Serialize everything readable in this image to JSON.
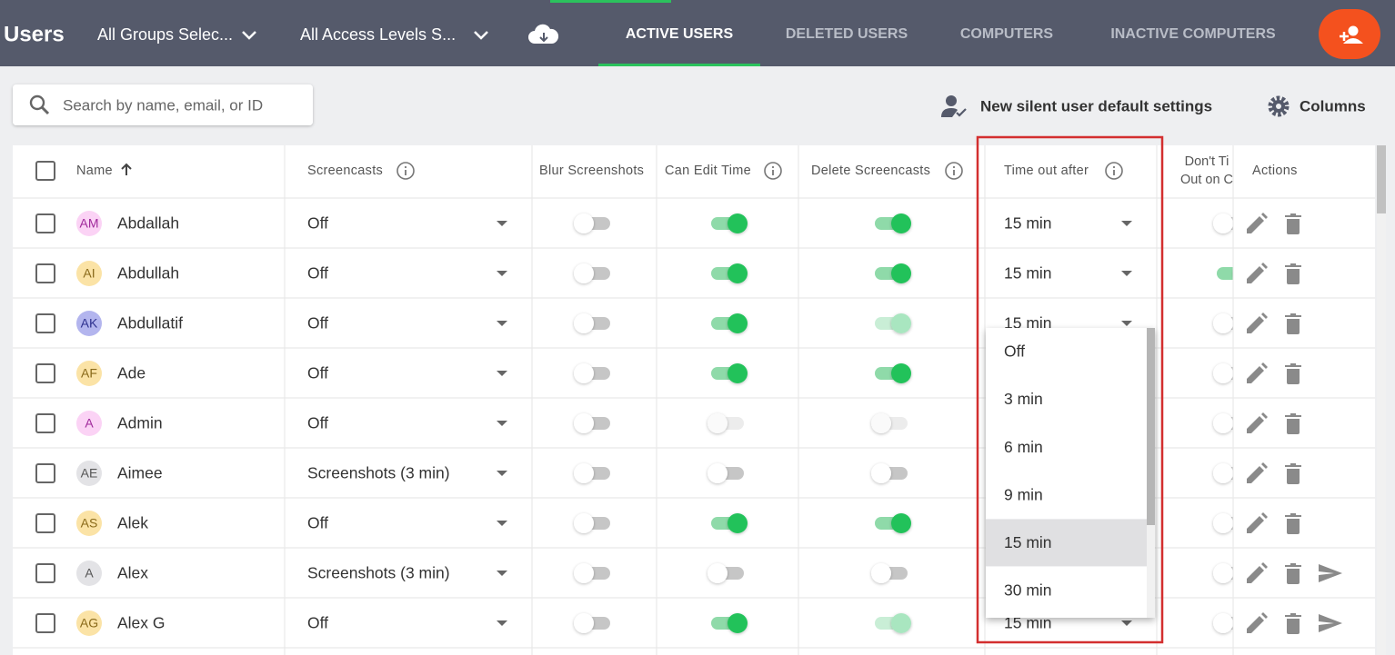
{
  "header": {
    "title": "Users",
    "groups_filter": "All Groups Selec...",
    "access_filter": "All Access Levels S...",
    "tabs": [
      "ACTIVE USERS",
      "DELETED USERS",
      "COMPUTERS",
      "INACTIVE COMPUTERS"
    ],
    "active_tab": 0
  },
  "toolbar": {
    "search_placeholder": "Search by name, email, or ID",
    "silent_settings": "New silent user default settings",
    "columns": "Columns"
  },
  "table": {
    "columns": [
      "Name",
      "Screencasts",
      "Blur Screenshots",
      "Can Edit Time",
      "Delete Screencasts",
      "Time out after",
      "Actions"
    ],
    "dont_header": [
      "Don't Ti",
      "Out on C"
    ],
    "rows": [
      {
        "initials": "AM",
        "name": "Abdallah",
        "avatar_color": "#fbd3f5",
        "initials_color": "#a0299b",
        "screencasts": "Off",
        "blur": "off",
        "edit": "on",
        "delete": "on",
        "timeout": "15 min",
        "dont": "off"
      },
      {
        "initials": "AI",
        "name": "Abdullah",
        "avatar_color": "#fbe3a6",
        "initials_color": "#8a6a1a",
        "screencasts": "Off",
        "blur": "off",
        "edit": "on",
        "delete": "on",
        "timeout": "15 min",
        "dont": "on"
      },
      {
        "initials": "AK",
        "name": "Abdullatif",
        "avatar_color": "#b3b5ee",
        "initials_color": "#2e318f",
        "screencasts": "Off",
        "blur": "off",
        "edit": "on",
        "delete": "on-disabled",
        "timeout": "15 min",
        "dont": "off"
      },
      {
        "initials": "AF",
        "name": "Ade",
        "avatar_color": "#fbe3a6",
        "initials_color": "#8a6a1a",
        "screencasts": "Off",
        "blur": "off",
        "edit": "on",
        "delete": "on",
        "dont": "off"
      },
      {
        "initials": "A",
        "name": "Admin",
        "avatar_color": "#fbd3f5",
        "initials_color": "#a0299b",
        "screencasts": "Off",
        "blur": "off",
        "edit": "off-disabled",
        "delete": "off-disabled",
        "dont": "off"
      },
      {
        "initials": "AE",
        "name": "Aimee",
        "avatar_color": "#e3e3e6",
        "initials_color": "#555",
        "screencasts": "Screenshots (3 min)",
        "blur": "off",
        "edit": "off",
        "delete": "off",
        "dont": "off"
      },
      {
        "initials": "AS",
        "name": "Alek",
        "avatar_color": "#fbe3a6",
        "initials_color": "#8a6a1a",
        "screencasts": "Off",
        "blur": "off",
        "edit": "on",
        "delete": "on",
        "dont": "off"
      },
      {
        "initials": "A",
        "name": "Alex",
        "avatar_color": "#e3e3e6",
        "initials_color": "#555",
        "screencasts": "Screenshots (3 min)",
        "blur": "off",
        "edit": "off",
        "delete": "off",
        "dont": "off",
        "send": true
      },
      {
        "initials": "AG",
        "name": "Alex G",
        "avatar_color": "#fbe3a6",
        "initials_color": "#8a6a1a",
        "screencasts": "Off",
        "blur": "off",
        "edit": "on",
        "delete": "on-disabled",
        "timeout": "15 min",
        "dont": "off",
        "send": true
      }
    ]
  },
  "dropdown": {
    "options": [
      "Off",
      "3 min",
      "6 min",
      "9 min",
      "15 min",
      "30 min"
    ],
    "selected": 4
  }
}
